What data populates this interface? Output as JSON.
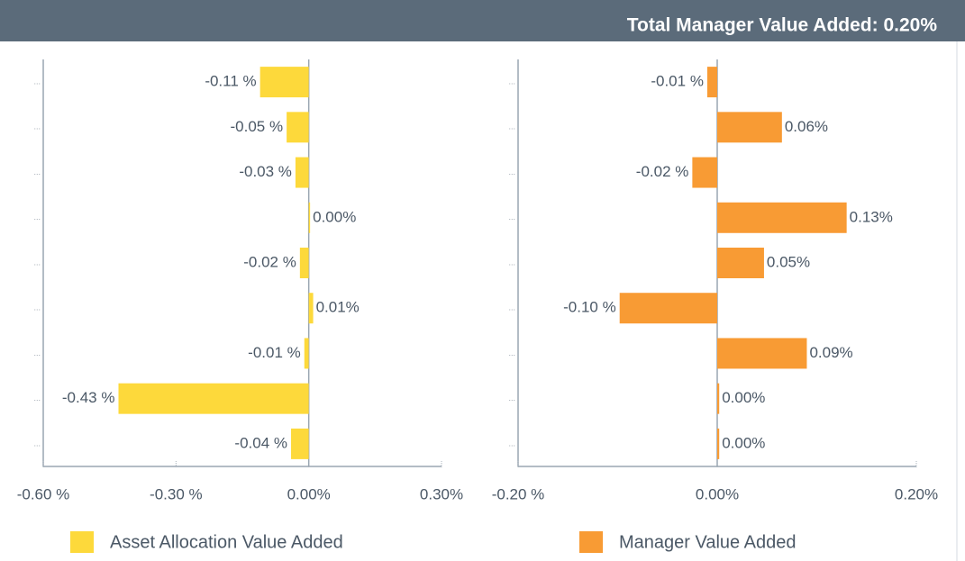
{
  "header": {
    "title": "Total Manager Value Added: 0.20%"
  },
  "chart_data": [
    {
      "type": "bar",
      "orientation": "horizontal",
      "categories": [
        "...",
        "...",
        "...",
        "...",
        "...",
        "...",
        "...",
        "...",
        "..."
      ],
      "series": [
        {
          "name": "Asset Allocation Value Added",
          "color": "#fdd93b",
          "values": [
            -0.11,
            -0.05,
            -0.03,
            0.003,
            -0.02,
            0.01,
            -0.01,
            -0.43,
            -0.04
          ],
          "value_labels": [
            "-0.11 %",
            "-0.05 %",
            "-0.03 %",
            "0.00%",
            "-0.02 %",
            "0.01%",
            "-0.01 %",
            "-0.43 %",
            "-0.04 %"
          ]
        }
      ],
      "xlim": [
        -0.6,
        0.3
      ],
      "xticks": [
        {
          "value": -0.6,
          "label": "-0.60 %"
        },
        {
          "value": -0.3,
          "label": "-0.30 %"
        },
        {
          "value": 0,
          "label": "0.00%"
        },
        {
          "value": 0.3,
          "label": "0.30%"
        }
      ]
    },
    {
      "type": "bar",
      "orientation": "horizontal",
      "categories": [
        "...",
        "...",
        "...",
        "...",
        "...",
        "...",
        "...",
        "...",
        "..."
      ],
      "series": [
        {
          "name": "Manager Value Added",
          "color": "#f89b34",
          "values": [
            -0.01,
            0.065,
            -0.025,
            0.13,
            0.047,
            -0.098,
            0.09,
            0.002,
            0.002
          ],
          "value_labels": [
            "-0.01 %",
            "0.06%",
            "-0.02 %",
            "0.13%",
            "0.05%",
            "-0.10 %",
            "0.09%",
            "0.00%",
            "0.00%"
          ]
        }
      ],
      "xlim": [
        -0.2,
        0.2
      ],
      "xticks": [
        {
          "value": -0.2,
          "label": "-0.20 %"
        },
        {
          "value": 0,
          "label": "0.00%"
        },
        {
          "value": 0.2,
          "label": "0.20%"
        }
      ]
    }
  ]
}
